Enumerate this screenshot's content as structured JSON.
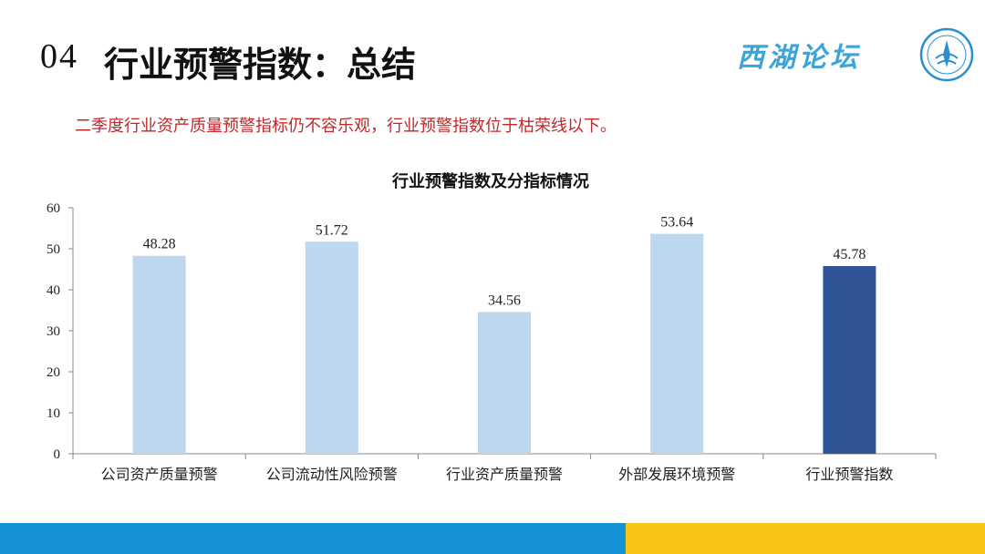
{
  "header": {
    "section_number": "04",
    "title": "行业预警指数：总结",
    "brand": "西湖论坛"
  },
  "subtitle": "二季度行业资产质量预警指标仍不容乐观，行业预警指数位于枯荣线以下。",
  "colors": {
    "bar_light": "#bdd7ee",
    "bar_dark": "#2f5597",
    "subtitle": "#c0282b",
    "footer_blue": "#1591d6",
    "footer_yellow": "#f8c418"
  },
  "chart_data": {
    "type": "bar",
    "title": "行业预警指数及分指标情况",
    "categories": [
      "公司资产质量预警",
      "公司流动性风险预警",
      "行业资产质量预警",
      "外部发展环境预警",
      "行业预警指数"
    ],
    "values": [
      48.28,
      51.72,
      34.56,
      53.64,
      45.78
    ],
    "value_labels": [
      "48.28",
      "51.72",
      "34.56",
      "53.64",
      "45.78"
    ],
    "highlight_index": 4,
    "ylim": [
      0,
      60
    ],
    "yticks": [
      0,
      10,
      20,
      30,
      40,
      50,
      60
    ],
    "xlabel": "",
    "ylabel": "",
    "grid": false,
    "legend": false
  }
}
